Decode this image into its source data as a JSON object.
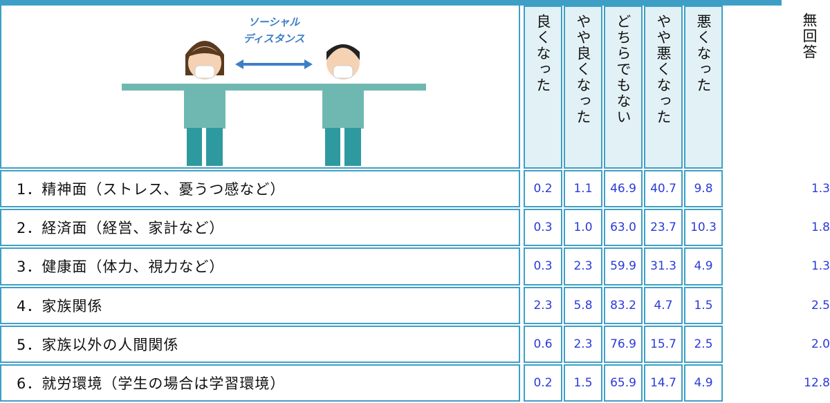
{
  "illustration": {
    "caption": [
      "ソーシャル",
      "ディスタンス"
    ]
  },
  "table": {
    "columns": [
      "良くなった",
      "やや良くなった",
      "どちらでもない",
      "やや悪くなった",
      "悪くなった",
      "無回答"
    ],
    "rows": [
      {
        "label": "1．精神面（ストレス、憂うつ感など）",
        "values": [
          "0.2",
          "1.1",
          "46.9",
          "40.7",
          "9.8",
          "1.3"
        ]
      },
      {
        "label": "2．経済面（経営、家計など）",
        "values": [
          "0.3",
          "1.0",
          "63.0",
          "23.7",
          "10.3",
          "1.8"
        ]
      },
      {
        "label": "3．健康面（体力、視力など）",
        "values": [
          "0.3",
          "2.3",
          "59.9",
          "31.3",
          "4.9",
          "1.3"
        ]
      },
      {
        "label": "4．家族関係",
        "values": [
          "2.3",
          "5.8",
          "83.2",
          "4.7",
          "1.5",
          "2.5"
        ]
      },
      {
        "label": "5．家族以外の人間関係",
        "values": [
          "0.6",
          "2.3",
          "76.9",
          "15.7",
          "2.5",
          "2.0"
        ]
      },
      {
        "label": "6．就労環境（学生の場合は学習環境）",
        "values": [
          "0.2",
          "1.5",
          "65.9",
          "14.7",
          "4.9",
          "12.8"
        ]
      }
    ]
  }
}
